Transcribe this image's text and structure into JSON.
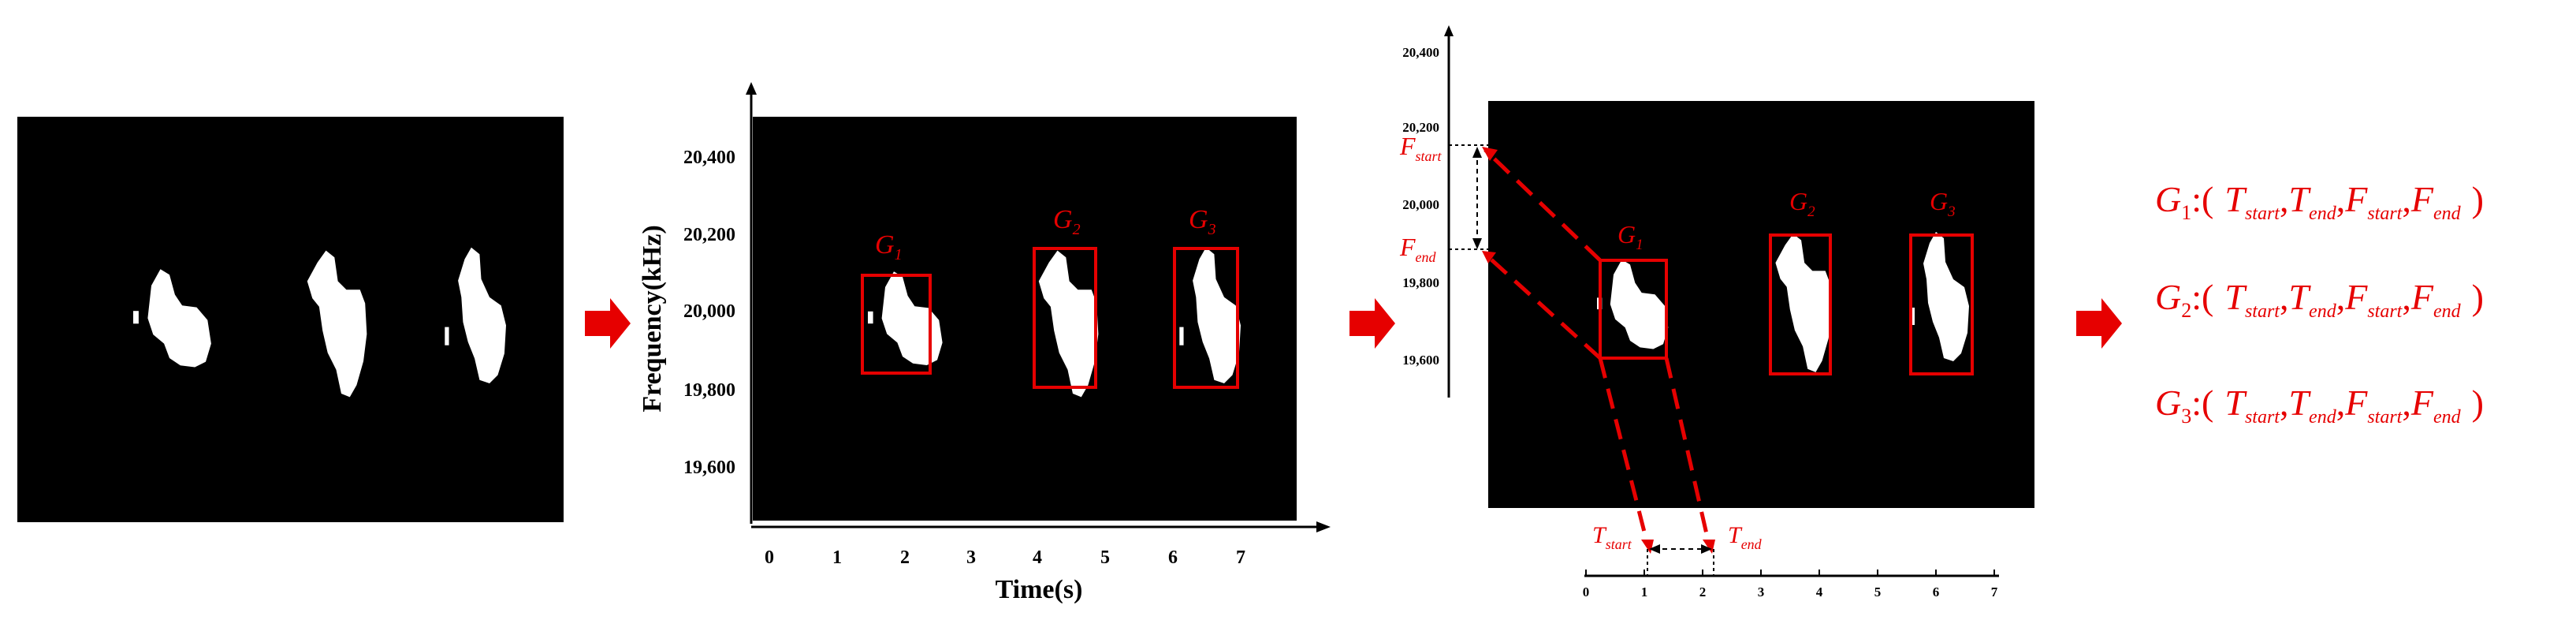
{
  "colors": {
    "accent_red": "#e60000",
    "panel_bg": "#000000",
    "blob": "#ffffff",
    "axis": "#000000"
  },
  "panel2": {
    "y_ticks": [
      "20,400",
      "20,200",
      "20,000",
      "19,800",
      "19,600"
    ],
    "x_ticks": [
      "0",
      "1",
      "2",
      "3",
      "4",
      "5",
      "6",
      "7"
    ],
    "ylabel": "Frequency(kHz)",
    "xlabel": "Time(s)",
    "boxes": [
      {
        "letter": "G",
        "sub": "1"
      },
      {
        "letter": "G",
        "sub": "2"
      },
      {
        "letter": "G",
        "sub": "3"
      }
    ]
  },
  "panel3": {
    "y_ticks": [
      "20,400",
      "20,200",
      "20,000",
      "19,800",
      "19,600"
    ],
    "x_ticks": [
      "0",
      "1",
      "2",
      "3",
      "4",
      "5",
      "6",
      "7"
    ],
    "f_start": {
      "letter": "F",
      "sub": "start"
    },
    "f_end": {
      "letter": "F",
      "sub": "end"
    },
    "t_start": {
      "letter": "T",
      "sub": "start"
    },
    "t_end": {
      "letter": "T",
      "sub": "end"
    },
    "boxes": [
      {
        "letter": "G",
        "sub": "1"
      },
      {
        "letter": "G",
        "sub": "2"
      },
      {
        "letter": "G",
        "sub": "3"
      }
    ]
  },
  "tuples": [
    {
      "g": "G",
      "g_sub": "1",
      "sep": ":(",
      "t1": "T",
      "t1_sub": "start",
      "t2": "T",
      "t2_sub": "end",
      "f1": "F",
      "f1_sub": "start",
      "f2": "F",
      "f2_sub": "end",
      "close": ")"
    },
    {
      "g": "G",
      "g_sub": "2",
      "sep": ":(",
      "t1": "T",
      "t1_sub": "start",
      "t2": "T",
      "t2_sub": "end",
      "f1": "F",
      "f1_sub": "start",
      "f2": "F",
      "f2_sub": "end",
      "close": ")"
    },
    {
      "g": "G",
      "g_sub": "3",
      "sep": ":(",
      "t1": "T",
      "t1_sub": "start",
      "t2": "T",
      "t2_sub": "end",
      "f1": "F",
      "f1_sub": "start",
      "f2": "F",
      "f2_sub": "end",
      "close": ")"
    }
  ]
}
